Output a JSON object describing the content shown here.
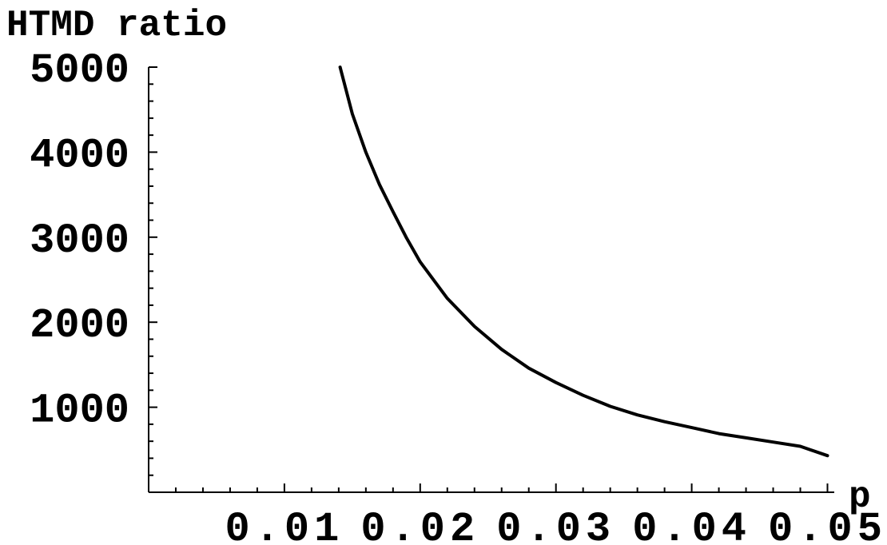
{
  "chart_data": {
    "type": "line",
    "title": "",
    "ylabel": "HTMD ratio",
    "xlabel": "p",
    "xlim": [
      0.0,
      0.0505
    ],
    "ylim": [
      0,
      5000
    ],
    "x_ticks": [
      0.01,
      0.02,
      0.03,
      0.04,
      0.05
    ],
    "x_tick_labels": [
      "0.01",
      "0.02",
      "0.03",
      "0.04",
      "0.05"
    ],
    "y_ticks": [
      1000,
      2000,
      3000,
      4000,
      5000
    ],
    "y_tick_labels": [
      "1000",
      "2000",
      "3000",
      "4000",
      "5000"
    ],
    "grid": false,
    "legend": "none",
    "series": [
      {
        "color": "#000000",
        "x": [
          0.0141,
          0.015,
          0.016,
          0.017,
          0.018,
          0.019,
          0.02,
          0.022,
          0.024,
          0.026,
          0.028,
          0.03,
          0.032,
          0.034,
          0.036,
          0.038,
          0.04,
          0.042,
          0.044,
          0.046,
          0.048,
          0.05
        ],
        "y": [
          5000,
          4450,
          4000,
          3620,
          3300,
          2990,
          2710,
          2280,
          1950,
          1680,
          1460,
          1290,
          1140,
          1010,
          910,
          830,
          760,
          690,
          640,
          590,
          540,
          430
        ]
      }
    ]
  }
}
